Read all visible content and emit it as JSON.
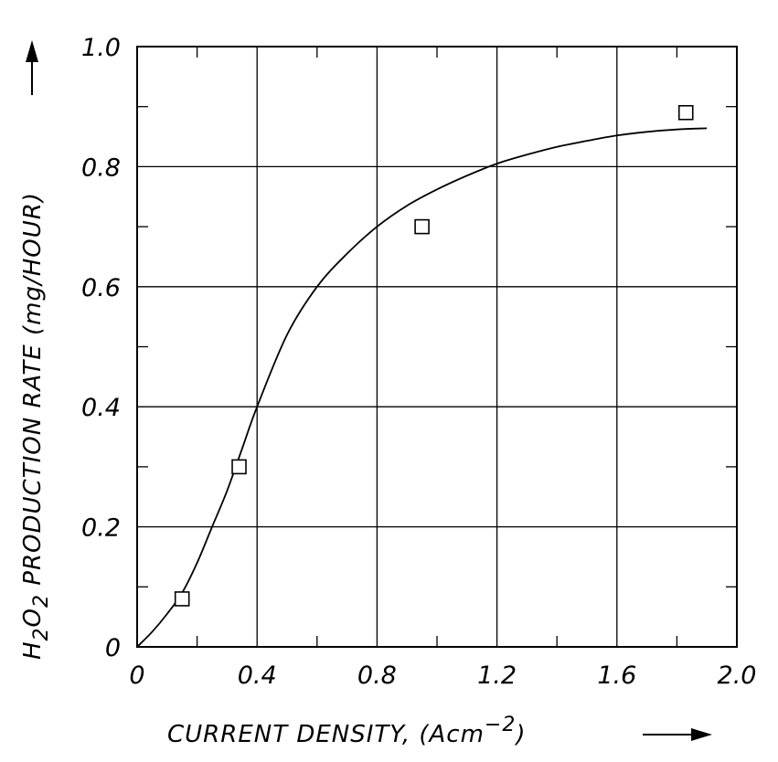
{
  "chart_data": {
    "type": "scatter",
    "xlim": [
      0,
      2.0
    ],
    "ylim": [
      0,
      1.0
    ],
    "x_ticks": [
      0,
      0.4,
      0.8,
      1.2,
      1.6,
      2.0
    ],
    "x_tick_labels": [
      "0",
      "0.4",
      "0.8",
      "1.2",
      "1.6",
      "2.0"
    ],
    "y_ticks": [
      0,
      0.2,
      0.4,
      0.6,
      0.8,
      1.0
    ],
    "y_tick_labels": [
      "0",
      "0.2",
      "0.4",
      "0.6",
      "0.8",
      "1.0"
    ],
    "grid": true,
    "xlabel": {
      "text": "CURRENT DENSITY,  (Acm",
      "sup": "−2",
      "suffix": ")"
    },
    "ylabel": {
      "prefix": "H",
      "sub1": "2",
      "mid": "O",
      "sub2": "2",
      "text": "  PRODUCTION  RATE  (mg/HOUR)"
    },
    "series": [
      {
        "type": "scatter",
        "marker": "square-open",
        "x": [
          0.15,
          0.34,
          0.95,
          1.83
        ],
        "y": [
          0.08,
          0.3,
          0.7,
          0.89
        ]
      },
      {
        "type": "line",
        "x": [
          0,
          0.05,
          0.1,
          0.15,
          0.2,
          0.25,
          0.3,
          0.35,
          0.4,
          0.5,
          0.6,
          0.7,
          0.8,
          0.9,
          1.0,
          1.1,
          1.2,
          1.3,
          1.4,
          1.5,
          1.6,
          1.7,
          1.8,
          1.9
        ],
        "y": [
          0,
          0.025,
          0.055,
          0.09,
          0.14,
          0.2,
          0.26,
          0.33,
          0.4,
          0.52,
          0.6,
          0.655,
          0.7,
          0.735,
          0.762,
          0.785,
          0.805,
          0.82,
          0.833,
          0.843,
          0.852,
          0.858,
          0.862,
          0.864
        ]
      }
    ],
    "colors": {
      "ink": "#000000",
      "background": "#ffffff"
    }
  }
}
